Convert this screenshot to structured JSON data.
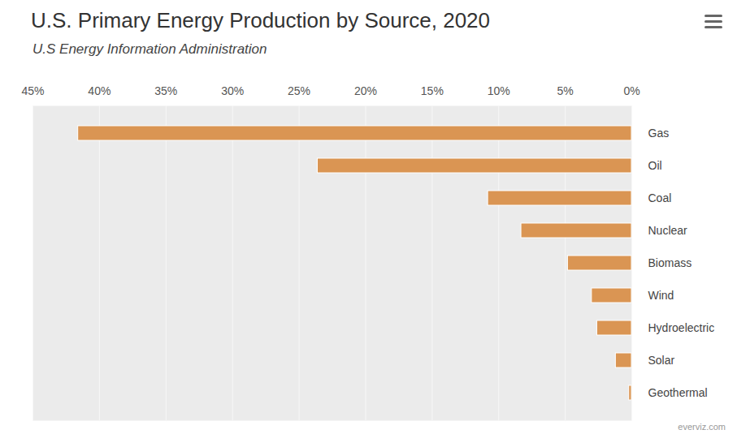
{
  "chart_data": {
    "type": "bar",
    "orientation": "horizontal",
    "title": "U.S. Primary Energy Production by Source, 2020",
    "subtitle": "U.S Energy Information Administration",
    "credits": "everviz.com",
    "categories": [
      "Gas",
      "Oil",
      "Coal",
      "Nuclear",
      "Biomass",
      "Wind",
      "Hydroelectric",
      "Solar",
      "Geothermal"
    ],
    "values": [
      41.6,
      23.6,
      10.8,
      8.3,
      4.8,
      3.0,
      2.6,
      1.2,
      0.2
    ],
    "color": "#da9553",
    "xlim": [
      45,
      0
    ],
    "xticks": [
      {
        "value": 45,
        "label": "45%"
      },
      {
        "value": 40,
        "label": "40%"
      },
      {
        "value": 35,
        "label": "35%"
      },
      {
        "value": 30,
        "label": "30%"
      },
      {
        "value": 25,
        "label": "25%"
      },
      {
        "value": 20,
        "label": "20%"
      },
      {
        "value": 15,
        "label": "15%"
      },
      {
        "value": 10,
        "label": "10%"
      },
      {
        "value": 5,
        "label": "5%"
      },
      {
        "value": 0,
        "label": "0%"
      }
    ],
    "grid": true
  }
}
